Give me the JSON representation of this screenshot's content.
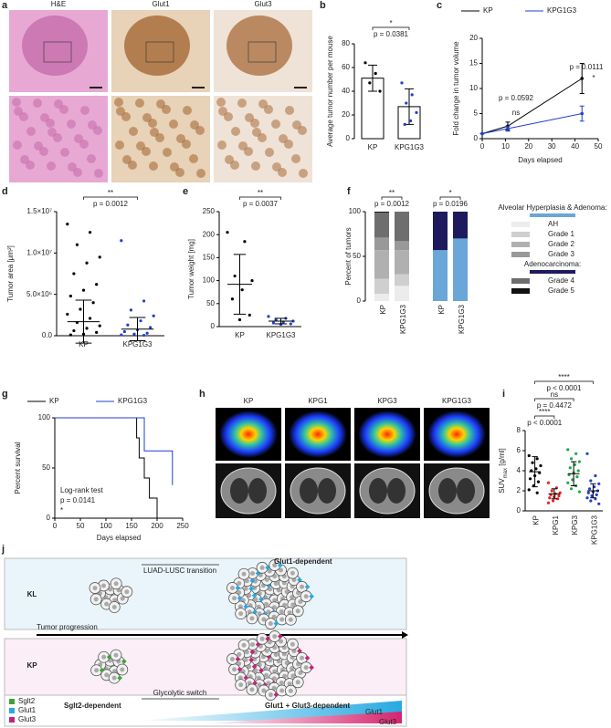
{
  "panels": [
    "a",
    "b",
    "c",
    "d",
    "e",
    "f",
    "g",
    "h",
    "i",
    "j"
  ],
  "histology": {
    "columns": [
      "H&E",
      "Glut1",
      "Glut3"
    ]
  },
  "pet": {
    "columns": [
      "KP",
      "KPG1",
      "KPG3",
      "KPG1G3"
    ]
  },
  "diagram": {
    "top_right": "Glut1-dependent",
    "top_transition": "LUAD-LUSC transition",
    "row1": "KL",
    "arrow": "Tumor progression",
    "row2": "KP",
    "bottom_transition": "Glycolytic switch",
    "bottom_left": "Sglt2-dependent",
    "bottom_right": "Glut1 + Glut3-dependent",
    "legend": [
      "Sglt2",
      "Glut1",
      "Glut3"
    ],
    "wedges": [
      "Glut1",
      "Glut3"
    ]
  },
  "chart_data": [
    {
      "type": "bar",
      "ylabel": "Average tumor number per mouse",
      "categories": [
        "KP",
        "KPG1G3"
      ],
      "values": [
        51,
        27
      ],
      "errors": [
        11,
        15
      ],
      "points": [
        [
          64,
          55,
          47,
          40
        ],
        [
          47,
          37,
          30,
          22,
          15,
          12
        ]
      ],
      "colors": [
        "#000000",
        "#1f3fd0"
      ],
      "ylim": [
        0,
        80
      ],
      "yticks": [
        0,
        20,
        40,
        60,
        80
      ],
      "annotations": [
        "*",
        "p = 0.0381"
      ]
    },
    {
      "type": "line",
      "xlabel": "Days elapsed",
      "ylabel": "Fold change in tumor volume",
      "x": [
        0,
        11,
        43
      ],
      "series": [
        {
          "name": "KP",
          "color": "#000000",
          "values": [
            1,
            2.5,
            12
          ],
          "errors": [
            0,
            0.8,
            3
          ]
        },
        {
          "name": "KPG1G3",
          "color": "#1f3fd0",
          "values": [
            1,
            2,
            5
          ],
          "errors": [
            0,
            0.5,
            1.5
          ]
        }
      ],
      "xlim": [
        0,
        50
      ],
      "xticks": [
        0,
        10,
        20,
        30,
        40,
        50
      ],
      "ylim": [
        0,
        20
      ],
      "yticks": [
        0,
        5,
        10,
        15,
        20
      ],
      "annotations": [
        "p = 0.0592",
        "ns",
        "p = 0.0111",
        "*"
      ]
    },
    {
      "type": "dot",
      "ylabel": "Tumor area [μm²]",
      "categories": [
        "KP",
        "KPG1G3"
      ],
      "values": [
        1700000,
        800000
      ],
      "errors": [
        2600000,
        1400000
      ],
      "points": [
        [
          13500000,
          12500000,
          11000000,
          9500000,
          8800000,
          7500000,
          6200000,
          5500000,
          4800000,
          4000000,
          3200000,
          2600000,
          2100000,
          1600000,
          1200000,
          900000,
          600000,
          400000,
          200000,
          100000
        ],
        [
          11500000,
          4200000,
          3100000,
          2400000,
          1800000,
          1300000,
          1000000,
          700000,
          500000,
          300000,
          200000,
          100000,
          50000
        ]
      ],
      "colors": [
        "#000000",
        "#1f3fd0"
      ],
      "ylim": [
        0,
        15000000
      ],
      "yticks": [
        {
          "value": 0,
          "label": "0.0"
        },
        {
          "value": 5000000,
          "label": "5.0×10⁶"
        },
        {
          "value": 10000000,
          "label": "1.0×10⁷"
        },
        {
          "value": 15000000,
          "label": "1.5×10⁷"
        }
      ],
      "annotations": [
        "**",
        "p = 0.0012"
      ]
    },
    {
      "type": "dot",
      "ylabel": "Tumor weight [mg]",
      "categories": [
        "KP",
        "KPG1G3"
      ],
      "values": [
        92,
        12
      ],
      "errors": [
        65,
        6
      ],
      "points": [
        [
          205,
          185,
          110,
          100,
          80,
          60,
          25,
          15
        ],
        [
          22,
          18,
          15,
          12,
          10,
          8,
          6,
          5
        ]
      ],
      "colors": [
        "#000000",
        "#1f3fd0"
      ],
      "ylim": [
        0,
        250
      ],
      "yticks": [
        0,
        50,
        100,
        150,
        200,
        250
      ],
      "annotations": [
        "**",
        "p = 0.0037"
      ]
    },
    {
      "type": "stacked",
      "ylabel": "Percent of tumors",
      "categories": [
        "KP",
        "KPG1G3",
        "KP",
        "KPG1G3"
      ],
      "series": [
        {
          "name": "AH",
          "color": "#ececec",
          "values": [
            8,
            17,
            null,
            null
          ]
        },
        {
          "name": "Grade 1",
          "color": "#cfcfcf",
          "values": [
            17,
            13,
            null,
            null
          ]
        },
        {
          "name": "Grade 2",
          "color": "#b0b0b0",
          "values": [
            32,
            27,
            null,
            null
          ]
        },
        {
          "name": "Grade 3",
          "color": "#999999",
          "values": [
            14,
            10,
            null,
            null
          ]
        },
        {
          "name": "Grade 4",
          "color": "#6e6e6e",
          "values": [
            28,
            33,
            null,
            null
          ]
        },
        {
          "name": "Grade 5",
          "color": "#111111",
          "values": [
            1,
            0,
            null,
            null
          ]
        },
        {
          "name": "Alveolar Hyperplasia & Adenoma:",
          "color": "#6aa6d8",
          "values": [
            null,
            null,
            57,
            70
          ]
        },
        {
          "name": "Adenocarcinoma:",
          "color": "#1d1a5e",
          "values": [
            null,
            null,
            43,
            30
          ]
        }
      ],
      "ylim": [
        0,
        100
      ],
      "yticks": [
        0,
        50,
        100
      ],
      "annotations": [
        "**",
        "p = 0.0012",
        "*",
        "p = 0.0196"
      ]
    },
    {
      "type": "step",
      "xlabel": "Days elapsed",
      "ylabel": "Percent survival",
      "series": [
        {
          "name": "KP",
          "color": "#000000",
          "x": [
            0,
            150,
            160,
            165,
            175,
            185,
            200
          ],
          "values": [
            100,
            100,
            80,
            60,
            40,
            20,
            0
          ]
        },
        {
          "name": "KPG1G3",
          "color": "#1f3fd0",
          "x": [
            0,
            160,
            175,
            230
          ],
          "values": [
            100,
            100,
            67,
            33
          ]
        }
      ],
      "xlim": [
        0,
        250
      ],
      "xticks": [
        0,
        50,
        100,
        150,
        200,
        250
      ],
      "ylim": [
        0,
        100
      ],
      "yticks": [
        0,
        50,
        100
      ],
      "annotations": [
        "Log-rank test",
        "p = 0.0141",
        "*"
      ]
    },
    {
      "type": "dot",
      "ylabel": [
        "SUV",
        "max",
        " [g/ml]"
      ],
      "categories": [
        "KP",
        "KPG1",
        "KPG3",
        "KPG1G3"
      ],
      "values": [
        3.9,
        1.7,
        3.7,
        2.0
      ],
      "errors": [
        1.5,
        0.5,
        1.2,
        0.7
      ],
      "points": [
        [
          5.5,
          5.2,
          4.8,
          4.5,
          4.2,
          4.0,
          3.8,
          3.5,
          3.2,
          2.9,
          2.5,
          2.1,
          1.8
        ],
        [
          2.8,
          2.3,
          2.0,
          1.8,
          1.7,
          1.6,
          1.5,
          1.4,
          1.3,
          1.2,
          1.0,
          0.8
        ],
        [
          6.1,
          5.7,
          5.2,
          4.9,
          4.6,
          4.3,
          4.0,
          3.8,
          3.6,
          3.4,
          3.1,
          2.8,
          2.5,
          2.2,
          1.9
        ],
        [
          5.7,
          3.5,
          3.0,
          2.7,
          2.4,
          2.2,
          2.0,
          1.9,
          1.8,
          1.6,
          1.5,
          1.3,
          1.2,
          1.0,
          0.7
        ]
      ],
      "colors": [
        "#000000",
        "#e8231e",
        "#1fa84a",
        "#1f3fd0"
      ],
      "ylim": [
        0,
        8
      ],
      "yticks": [
        0,
        2,
        4,
        6,
        8
      ],
      "annotations": [
        "****",
        "p < 0.0001",
        "ns",
        "p = 0.4472",
        "****",
        "p < 0.0001"
      ]
    }
  ]
}
